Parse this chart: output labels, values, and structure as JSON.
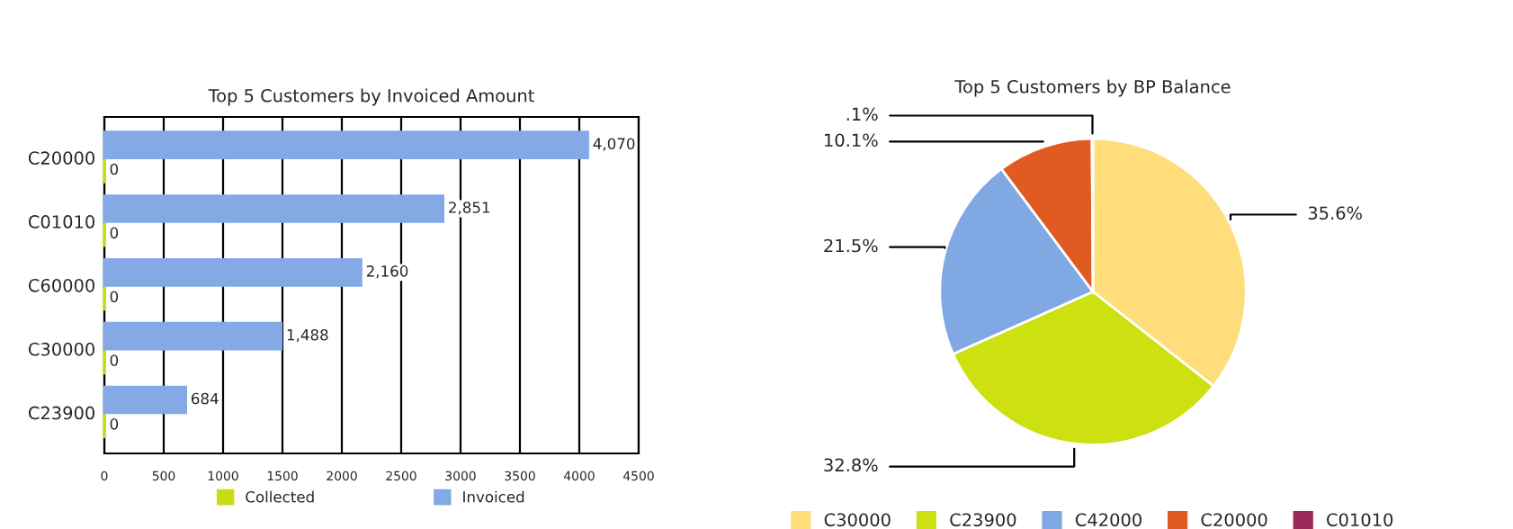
{
  "chart_data": [
    {
      "type": "bar",
      "title": "Top 5 Customers by Invoiced Amount",
      "orientation": "horizontal",
      "categories": [
        "C20000",
        "C01010",
        "C60000",
        "C30000",
        "C23900"
      ],
      "series": [
        {
          "name": "Collected",
          "color": "#c8dc14",
          "values": [
            0,
            0,
            0,
            0,
            0
          ],
          "value_labels": [
            "0",
            "0",
            "0",
            "0",
            "0"
          ]
        },
        {
          "name": "Invoiced",
          "color": "#84a9e4",
          "values": [
            4070,
            2851,
            2160,
            1488,
            684
          ],
          "value_labels": [
            "4,070",
            "2,851",
            "2,160",
            "1,488",
            "684"
          ]
        }
      ],
      "xlim": [
        0,
        4500
      ],
      "xticks": [
        0,
        500,
        1000,
        1500,
        2000,
        2500,
        3000,
        3500,
        4000,
        4500
      ],
      "grid": "x",
      "legend": "bottom"
    },
    {
      "type": "pie",
      "title": "Top 5 Customers by BP Balance",
      "categories": [
        "C30000",
        "C23900",
        "C42000",
        "C20000",
        "C01010"
      ],
      "values": [
        35.6,
        32.8,
        21.5,
        10.1,
        0.1
      ],
      "colors": [
        "#fedd7a",
        "#cde010",
        "#80a8e2",
        "#e05a22",
        "#9b2a5a"
      ],
      "value_labels": [
        "35.6%",
        "32.8%",
        "21.5%",
        "10.1%",
        ".1%"
      ],
      "legend": "bottom"
    }
  ]
}
